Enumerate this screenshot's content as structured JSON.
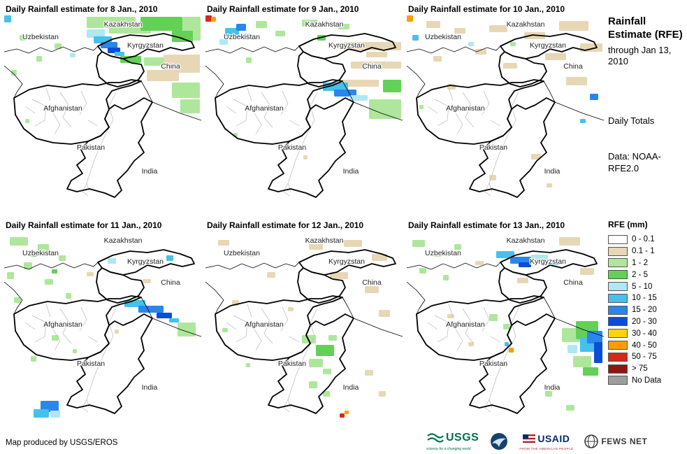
{
  "panels": [
    {
      "title": "Daily Rainfall estimate for 8 Jan., 2010",
      "blobs": [
        [
          118,
          2,
          70,
          16,
          "green1"
        ],
        [
          150,
          14,
          60,
          12,
          "green1"
        ],
        [
          195,
          2,
          60,
          20,
          "green2"
        ],
        [
          255,
          2,
          26,
          34,
          "green1"
        ],
        [
          240,
          22,
          30,
          16,
          "green2"
        ],
        [
          118,
          20,
          26,
          12,
          "cyan"
        ],
        [
          128,
          30,
          26,
          10,
          "sky"
        ],
        [
          138,
          38,
          24,
          9,
          "blue"
        ],
        [
          148,
          46,
          18,
          8,
          "deep"
        ],
        [
          158,
          52,
          14,
          6,
          "sky"
        ],
        [
          166,
          58,
          30,
          10,
          "green2"
        ],
        [
          200,
          60,
          34,
          12,
          "green1"
        ],
        [
          228,
          56,
          52,
          26,
          "tan"
        ],
        [
          204,
          78,
          46,
          16,
          "tan"
        ],
        [
          240,
          96,
          40,
          22,
          "green1"
        ],
        [
          252,
          120,
          28,
          20,
          "green1"
        ],
        [
          0,
          0,
          10,
          10,
          "sky"
        ],
        [
          22,
          28,
          10,
          8,
          "green1"
        ],
        [
          46,
          58,
          8,
          8,
          "green1"
        ],
        [
          10,
          78,
          8,
          8,
          "green1"
        ],
        [
          72,
          40,
          10,
          8,
          "green1"
        ],
        [
          94,
          54,
          8,
          6,
          "cyan"
        ],
        [
          30,
          148,
          6,
          6,
          "green1"
        ]
      ]
    },
    {
      "title": "Daily Rainfall estimate for 9 Jan., 2010",
      "blobs": [
        [
          0,
          0,
          9,
          9,
          "red"
        ],
        [
          8,
          2,
          7,
          7,
          "orange"
        ],
        [
          28,
          18,
          20,
          12,
          "sky"
        ],
        [
          44,
          12,
          14,
          10,
          "blue"
        ],
        [
          20,
          34,
          12,
          8,
          "cyan"
        ],
        [
          54,
          26,
          10,
          8,
          "cyan"
        ],
        [
          72,
          8,
          16,
          10,
          "green1"
        ],
        [
          100,
          22,
          14,
          8,
          "green1"
        ],
        [
          138,
          6,
          22,
          10,
          "green1"
        ],
        [
          160,
          28,
          12,
          8,
          "green2"
        ],
        [
          190,
          12,
          16,
          8,
          "green1"
        ],
        [
          198,
          38,
          82,
          12,
          "tan"
        ],
        [
          208,
          66,
          72,
          10,
          "tan"
        ],
        [
          188,
          92,
          60,
          10,
          "tan"
        ],
        [
          230,
          52,
          30,
          8,
          "tan"
        ],
        [
          168,
          96,
          36,
          12,
          "sky"
        ],
        [
          184,
          106,
          32,
          10,
          "blue"
        ],
        [
          206,
          114,
          26,
          8,
          "cyan"
        ],
        [
          234,
          120,
          46,
          28,
          "green1"
        ],
        [
          254,
          92,
          26,
          18,
          "green2"
        ],
        [
          58,
          60,
          8,
          8,
          "green1"
        ],
        [
          88,
          128,
          6,
          6,
          "tan"
        ],
        [
          40,
          168,
          6,
          6,
          "green1"
        ],
        [
          140,
          200,
          6,
          6,
          "tan"
        ]
      ]
    },
    {
      "title": "Daily Rainfall estimate for 10 Jan., 2010",
      "blobs": [
        [
          0,
          0,
          9,
          9,
          "orange"
        ],
        [
          28,
          8,
          20,
          10,
          "tan"
        ],
        [
          68,
          18,
          16,
          8,
          "tan"
        ],
        [
          118,
          14,
          26,
          10,
          "tan"
        ],
        [
          168,
          24,
          30,
          10,
          "tan"
        ],
        [
          218,
          8,
          42,
          14,
          "tan"
        ],
        [
          248,
          40,
          32,
          12,
          "tan"
        ],
        [
          198,
          54,
          30,
          10,
          "tan"
        ],
        [
          98,
          48,
          16,
          8,
          "tan"
        ],
        [
          38,
          58,
          12,
          8,
          "tan"
        ],
        [
          138,
          68,
          20,
          8,
          "tan"
        ],
        [
          228,
          88,
          30,
          12,
          "tan"
        ],
        [
          58,
          98,
          12,
          8,
          "tan"
        ],
        [
          8,
          28,
          9,
          8,
          "sky"
        ],
        [
          88,
          38,
          8,
          6,
          "cyan"
        ],
        [
          262,
          112,
          12,
          9,
          "blue"
        ],
        [
          248,
          148,
          8,
          6,
          "sky"
        ],
        [
          148,
          38,
          8,
          6,
          "green1"
        ],
        [
          18,
          128,
          6,
          6,
          "green1"
        ],
        [
          178,
          198,
          14,
          8,
          "tan"
        ],
        [
          118,
          228,
          10,
          8,
          "tan"
        ],
        [
          200,
          240,
          8,
          6,
          "tan"
        ]
      ]
    },
    {
      "title": "Daily Rainfall estimate for 11 Jan., 2010",
      "blobs": [
        [
          8,
          8,
          26,
          12,
          "green1"
        ],
        [
          48,
          18,
          16,
          10,
          "green1"
        ],
        [
          28,
          44,
          12,
          10,
          "green1"
        ],
        [
          78,
          34,
          10,
          8,
          "green1"
        ],
        [
          4,
          58,
          10,
          10,
          "green1"
        ],
        [
          58,
          68,
          12,
          8,
          "green1"
        ],
        [
          14,
          94,
          10,
          8,
          "green1"
        ],
        [
          88,
          88,
          8,
          8,
          "green1"
        ],
        [
          38,
          28,
          8,
          8,
          "green2"
        ],
        [
          68,
          54,
          8,
          6,
          "green2"
        ],
        [
          148,
          38,
          12,
          8,
          "cyan"
        ],
        [
          232,
          34,
          10,
          8,
          "sky"
        ],
        [
          172,
          98,
          30,
          10,
          "sky"
        ],
        [
          192,
          106,
          36,
          10,
          "blue"
        ],
        [
          218,
          116,
          22,
          8,
          "deep"
        ],
        [
          236,
          124,
          14,
          6,
          "sky"
        ],
        [
          248,
          130,
          26,
          20,
          "green1"
        ],
        [
          68,
          148,
          10,
          8,
          "green1"
        ],
        [
          38,
          178,
          8,
          8,
          "green1"
        ],
        [
          98,
          168,
          6,
          6,
          "green1"
        ],
        [
          52,
          242,
          26,
          16,
          "blue"
        ],
        [
          42,
          254,
          22,
          12,
          "sky"
        ],
        [
          66,
          256,
          14,
          10,
          "cyan"
        ],
        [
          118,
          58,
          10,
          6,
          "tan"
        ],
        [
          198,
          68,
          12,
          6,
          "tan"
        ],
        [
          158,
          140,
          6,
          6,
          "tan"
        ]
      ]
    },
    {
      "title": "Daily Rainfall estimate for 12 Jan., 2010",
      "blobs": [
        [
          18,
          12,
          16,
          8,
          "tan"
        ],
        [
          58,
          28,
          12,
          8,
          "tan"
        ],
        [
          148,
          18,
          20,
          8,
          "tan"
        ],
        [
          198,
          12,
          26,
          10,
          "tan"
        ],
        [
          238,
          32,
          22,
          10,
          "tan"
        ],
        [
          88,
          58,
          12,
          8,
          "tan"
        ],
        [
          178,
          58,
          26,
          10,
          "tan"
        ],
        [
          228,
          78,
          20,
          10,
          "tan"
        ],
        [
          248,
          112,
          16,
          10,
          "tan"
        ],
        [
          38,
          98,
          10,
          8,
          "tan"
        ],
        [
          118,
          108,
          8,
          6,
          "tan"
        ],
        [
          138,
          148,
          20,
          12,
          "green1"
        ],
        [
          158,
          162,
          26,
          16,
          "green2"
        ],
        [
          148,
          182,
          20,
          12,
          "green1"
        ],
        [
          176,
          148,
          12,
          8,
          "green1"
        ],
        [
          168,
          196,
          12,
          8,
          "green1"
        ],
        [
          148,
          214,
          12,
          10,
          "green1"
        ],
        [
          168,
          228,
          10,
          8,
          "green1"
        ],
        [
          192,
          260,
          7,
          6,
          "red"
        ],
        [
          199,
          256,
          6,
          5,
          "orange"
        ],
        [
          24,
          138,
          8,
          6,
          "green1"
        ],
        [
          58,
          188,
          6,
          6,
          "green1"
        ],
        [
          228,
          198,
          12,
          8,
          "tan"
        ],
        [
          248,
          228,
          10,
          8,
          "tan"
        ]
      ]
    },
    {
      "title": "Daily Rainfall estimate for 13 Jan., 2010",
      "blobs": [
        [
          128,
          28,
          26,
          10,
          "sky"
        ],
        [
          148,
          36,
          30,
          10,
          "blue"
        ],
        [
          178,
          33,
          24,
          8,
          "cyan"
        ],
        [
          202,
          40,
          16,
          8,
          "sky"
        ],
        [
          160,
          44,
          18,
          7,
          "deep"
        ],
        [
          8,
          12,
          18,
          10,
          "green1"
        ],
        [
          38,
          28,
          12,
          8,
          "green1"
        ],
        [
          68,
          18,
          10,
          8,
          "green1"
        ],
        [
          18,
          52,
          10,
          8,
          "green1"
        ],
        [
          52,
          62,
          8,
          8,
          "green1"
        ],
        [
          218,
          8,
          30,
          12,
          "tan"
        ],
        [
          248,
          52,
          20,
          10,
          "tan"
        ],
        [
          98,
          42,
          12,
          6,
          "tan"
        ],
        [
          158,
          66,
          16,
          8,
          "tan"
        ],
        [
          118,
          118,
          12,
          10,
          "green1"
        ],
        [
          138,
          132,
          10,
          8,
          "green1"
        ],
        [
          146,
          166,
          7,
          7,
          "orange"
        ],
        [
          140,
          158,
          6,
          6,
          "sky"
        ],
        [
          222,
          138,
          32,
          20,
          "green1"
        ],
        [
          242,
          128,
          32,
          26,
          "green2"
        ],
        [
          248,
          152,
          26,
          20,
          "sky"
        ],
        [
          258,
          142,
          22,
          18,
          "blue"
        ],
        [
          268,
          158,
          12,
          30,
          "deep"
        ],
        [
          238,
          178,
          26,
          16,
          "green1"
        ],
        [
          252,
          194,
          22,
          12,
          "green2"
        ],
        [
          230,
          162,
          14,
          12,
          "cyan"
        ],
        [
          198,
          228,
          10,
          8,
          "green1"
        ],
        [
          228,
          248,
          12,
          8,
          "green1"
        ],
        [
          58,
          118,
          10,
          6,
          "tan"
        ],
        [
          88,
          158,
          8,
          6,
          "tan"
        ]
      ]
    }
  ],
  "map_labels": {
    "kazakhstan": "Kazakhstan",
    "uzbekistan": "Uzbekistan",
    "kyrgyzstan": "Kyrgyzstan",
    "china": "China",
    "afghanistan": "Afghanistan",
    "pakistan": "Pakistan",
    "india": "India"
  },
  "palette": {
    "white": "#ffffff",
    "tan": "#e7d7b4",
    "green1": "#aee79b",
    "green2": "#62d156",
    "cyan": "#aee8f2",
    "sky": "#47c0ec",
    "blue": "#2b86ec",
    "deep": "#0a4ed8",
    "yellow": "#ffd400",
    "orange": "#ff9c00",
    "red": "#d62718",
    "darkred": "#8f1511",
    "gray": "#9e9e9e"
  },
  "sidebar": {
    "title": "Rainfall Estimate (RFE)",
    "subtitle": "through Jan 13, 2010",
    "daily_totals": "Daily Totals",
    "data_source": "Data: NOAA-RFE2.0",
    "legend_title": "RFE (mm)",
    "legend": [
      {
        "label": "0 - 0.1",
        "color": "#ffffff"
      },
      {
        "label": "0.1 - 1",
        "color": "#e7d7b4"
      },
      {
        "label": "1 - 2",
        "color": "#aee79b"
      },
      {
        "label": "2 - 5",
        "color": "#62d156"
      },
      {
        "label": "5 - 10",
        "color": "#aee8f2"
      },
      {
        "label": "10 - 15",
        "color": "#47c0ec"
      },
      {
        "label": "15 - 20",
        "color": "#2b86ec"
      },
      {
        "label": "20 - 30",
        "color": "#0a4ed8"
      },
      {
        "label": "30 - 40",
        "color": "#ffd400"
      },
      {
        "label": "40 - 50",
        "color": "#ff9c00"
      },
      {
        "label": "50 - 75",
        "color": "#d62718"
      },
      {
        "label": "> 75",
        "color": "#8f1511"
      },
      {
        "label": "No Data",
        "color": "#9e9e9e"
      }
    ]
  },
  "footer": {
    "credit": "Map produced by USGS/EROS",
    "logos": {
      "usgs": {
        "text": "USGS",
        "tagline": "science for a changing world"
      },
      "noaa": {
        "name": "NOAA logo"
      },
      "usaid": {
        "text": "USAID",
        "tagline": "FROM THE AMERICAN PEOPLE"
      },
      "fewsnet": {
        "text": "FEWS NET"
      }
    }
  }
}
